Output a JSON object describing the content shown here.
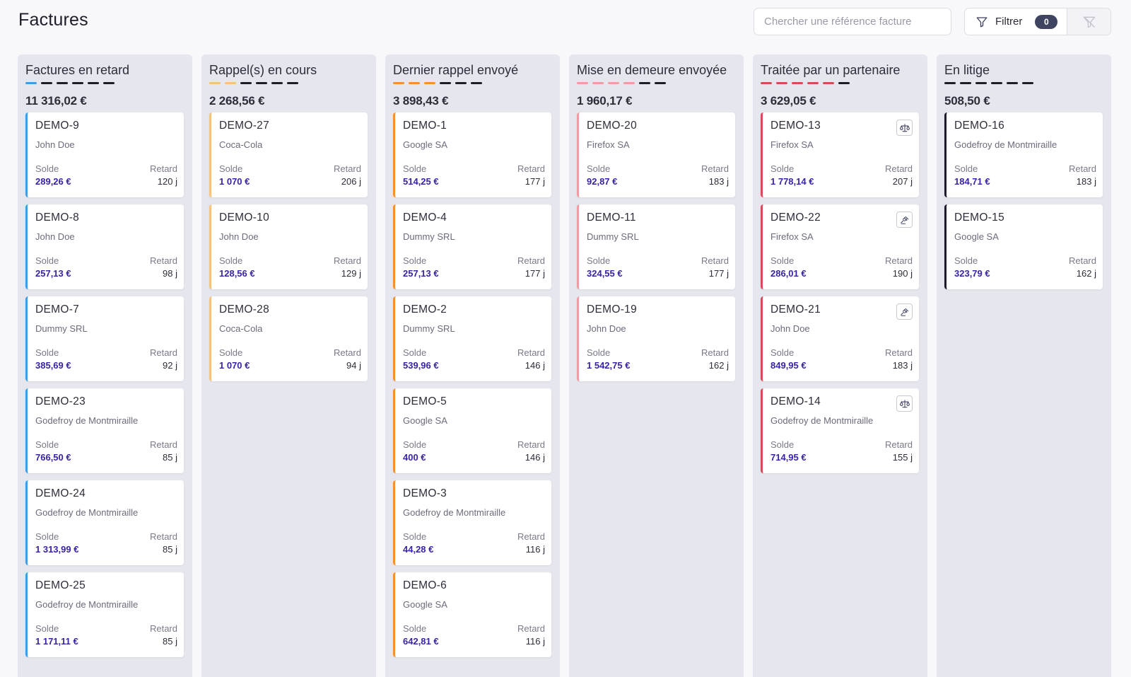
{
  "header": {
    "title": "Factures",
    "search_placeholder": "Chercher une référence facture",
    "search_value": "",
    "filter_label": "Filtrer",
    "filter_count": "0"
  },
  "labels": {
    "balance": "Solde",
    "delay": "Retard"
  },
  "colors": {
    "blue": "#3b9ee8",
    "peach": "#f7c27a",
    "orange": "#f3922d",
    "pink": "#f39aa4",
    "red": "#d94957",
    "black": "#1d1d29",
    "amount": "#3a22a8"
  },
  "columns": [
    {
      "title": "Factures en retard",
      "total": "11 316,02 €",
      "color": "#3b9ee8",
      "progress_steps": 1,
      "cards": [
        {
          "ref": "DEMO-9",
          "client": "John Doe",
          "balance": "289,26 €",
          "delay": "120 j"
        },
        {
          "ref": "DEMO-8",
          "client": "John Doe",
          "balance": "257,13 €",
          "delay": "98 j"
        },
        {
          "ref": "DEMO-7",
          "client": "Dummy SRL",
          "balance": "385,69 €",
          "delay": "92 j"
        },
        {
          "ref": "DEMO-23",
          "client": "Godefroy de Montmiraille",
          "balance": "766,50 €",
          "delay": "85 j"
        },
        {
          "ref": "DEMO-24",
          "client": "Godefroy de Montmiraille",
          "balance": "1 313,99 €",
          "delay": "85 j"
        },
        {
          "ref": "DEMO-25",
          "client": "Godefroy de Montmiraille",
          "balance": "1 171,11 €",
          "delay": "85 j"
        }
      ]
    },
    {
      "title": "Rappel(s) en cours",
      "total": "2 268,56 €",
      "color": "#f7c27a",
      "progress_steps": 2,
      "cards": [
        {
          "ref": "DEMO-27",
          "client": "Coca-Cola",
          "balance": "1 070 €",
          "delay": "206 j"
        },
        {
          "ref": "DEMO-10",
          "client": "John Doe",
          "balance": "128,56 €",
          "delay": "129 j"
        },
        {
          "ref": "DEMO-28",
          "client": "Coca-Cola",
          "balance": "1 070 €",
          "delay": "94 j"
        }
      ]
    },
    {
      "title": "Dernier rappel envoyé",
      "total": "3 898,43 €",
      "color": "#f3922d",
      "progress_steps": 3,
      "cards": [
        {
          "ref": "DEMO-1",
          "client": "Google SA",
          "balance": "514,25 €",
          "delay": "177 j"
        },
        {
          "ref": "DEMO-4",
          "client": "Dummy SRL",
          "balance": "257,13 €",
          "delay": "177 j"
        },
        {
          "ref": "DEMO-2",
          "client": "Dummy SRL",
          "balance": "539,96 €",
          "delay": "146 j"
        },
        {
          "ref": "DEMO-5",
          "client": "Google SA",
          "balance": "400 €",
          "delay": "146 j"
        },
        {
          "ref": "DEMO-3",
          "client": "Godefroy de Montmiraille",
          "balance": "44,28 €",
          "delay": "116 j"
        },
        {
          "ref": "DEMO-6",
          "client": "Google SA",
          "balance": "642,81 €",
          "delay": "116 j"
        }
      ]
    },
    {
      "title": "Mise en demeure envoyée",
      "total": "1 960,17 €",
      "color": "#f39aa4",
      "progress_steps": 4,
      "cards": [
        {
          "ref": "DEMO-20",
          "client": "Firefox SA",
          "balance": "92,87 €",
          "delay": "183 j"
        },
        {
          "ref": "DEMO-11",
          "client": "Dummy SRL",
          "balance": "324,55 €",
          "delay": "177 j"
        },
        {
          "ref": "DEMO-19",
          "client": "John Doe",
          "balance": "1 542,75 €",
          "delay": "162 j"
        }
      ]
    },
    {
      "title": "Traitée par un partenaire",
      "total": "3 629,05 €",
      "color": "#d94957",
      "progress_steps": 5,
      "cards": [
        {
          "ref": "DEMO-13",
          "client": "Firefox SA",
          "balance": "1 778,14 €",
          "delay": "207 j",
          "icon": "scale-icon"
        },
        {
          "ref": "DEMO-22",
          "client": "Firefox SA",
          "balance": "286,01 €",
          "delay": "190 j",
          "icon": "gavel-icon"
        },
        {
          "ref": "DEMO-21",
          "client": "John Doe",
          "balance": "849,95 €",
          "delay": "183 j",
          "icon": "gavel-icon"
        },
        {
          "ref": "DEMO-14",
          "client": "Godefroy de Montmiraille",
          "balance": "714,95 €",
          "delay": "155 j",
          "icon": "scale-icon"
        }
      ]
    },
    {
      "title": "En litige",
      "total": "508,50 €",
      "color": "#1d1d29",
      "progress_steps": 6,
      "cards": [
        {
          "ref": "DEMO-16",
          "client": "Godefroy de Montmiraille",
          "balance": "184,71 €",
          "delay": "183 j"
        },
        {
          "ref": "DEMO-15",
          "client": "Google SA",
          "balance": "323,79 €",
          "delay": "162 j"
        }
      ]
    }
  ]
}
